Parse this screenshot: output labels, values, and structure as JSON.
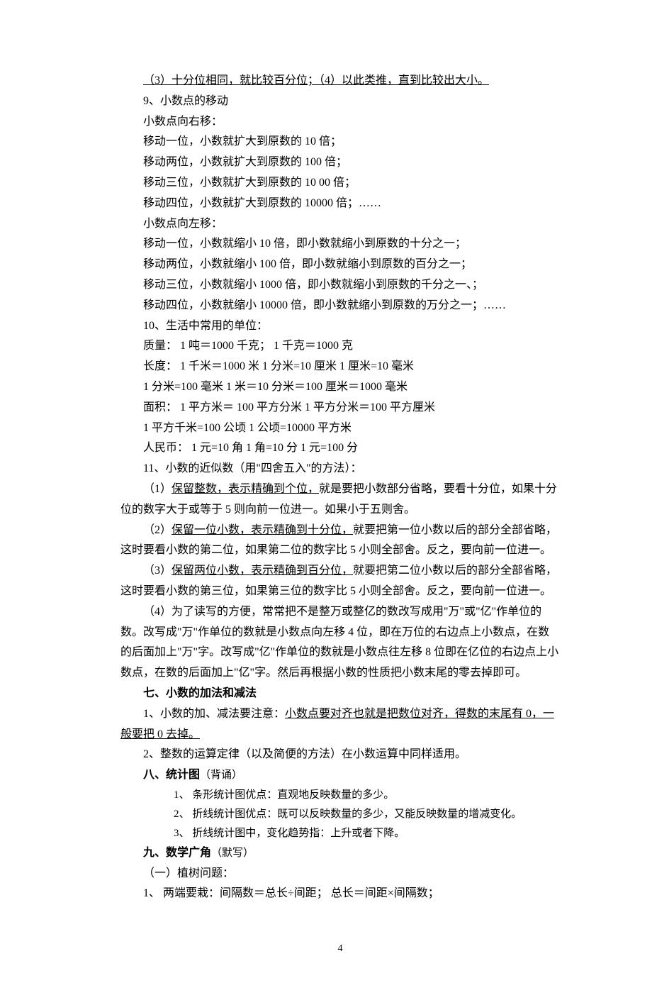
{
  "line1": "（3）十分位相同，就比较百分位；（4）以此类推，直到比较出大小。",
  "line2": "9、小数点的移动",
  "line3": "小数点向右移：",
  "line4": "移动一位，小数就扩大到原数的 10 倍；",
  "line5": "移动两位，小数就扩大到原数的 100 倍；",
  "line6": "移动三位，小数就扩大到原数的 10 00 倍；",
  "line7": "移动四位，小数就扩大到原数的 10000 倍；……",
  "line8": "小数点向左移：",
  "line9": "移动一位，小数就缩小 10 倍，即小数就缩小到原数的十分之一；",
  "line10": "移动两位，小数就缩小 100 倍，即小数就缩小到原数的百分之一；",
  "line11": "移动三位，小数就缩小 1000 倍，即小数就缩小到原数的千分之一、；",
  "line12": "移动四位，小数就缩小 10000 倍，即小数就缩小到原数的万分之一；……",
  "line13": "10、生活中常用的单位：",
  "line14": "质量：  1 吨＝1000 千克；      1 千克＝1000 克",
  "line15": "长度：  1 千米＝1000 米      1 分米=10 厘米    1 厘米=10 毫米",
  "line16": "             1 分米=100 毫米      1 米＝10 分米＝100 厘米＝1000 毫米",
  "line17": "面积：  1 平方米＝ 100 平方分米        1 平方分米＝100 平方厘米",
  "line18": "              1 平方千米=100 公顷           1 公顷=10000 平方米",
  "line19": "人民币：  1 元=10 角       1 角=10 分        1 元=100 分",
  "line20": "11、小数的近似数（用\"四舍五入\"的方法）：",
  "p21a": "（1）",
  "p21u": "保留整数，表示精确到个位，",
  "p21b": "就是要把小数部分省略，要看十分位，如果十分位的数字大于或等于 5 则向前一位进一。如果小于五则舍。",
  "p22a": "（2）",
  "p22u": "保留一位小数，表示精确到十分位，",
  "p22b": "就要把第一位小数以后的部分全部省略， 这时要看小数的第二位，如果第二位的数字比 5 小则全部舍。反之，要向前一位进一。",
  "p23a": "（3）",
  "p23u": "保留两位小数，表示精确到百分位，",
  "p23b": "就要把第二位小数以后的部分全部省略，这时要看小数的第三位，如果第三位的数字比 5 小则全部舍。反之，要向前一位进一。",
  "p24": "（4）为了读写的方便，常常把不是整万或整亿的数改写成用\"万\"或\"亿\"作单位的数。改写成\"万\"作单位的数就是小数点向左移 4 位，即在万位的右边点上小数点，在数的后面加上\"万\"字。改写成\"亿\"作单位的数就是小数点往左移 8 位即在亿位的右边点上小数点，在数的后面加上\"亿\"字。然后再根据小数的性质把小数末尾的零去掉即可。",
  "h7": "七、小数的加法和减法",
  "p71a": "1、小数的加、减法要注意：",
  "p71u": "小数点要对齐也就是把数位对齐，得数的末尾有 0，一般要把 0 去掉。",
  "p72": "2、整数的运算定律（以及简便的方法）在小数运算中同样适用。",
  "h8a": "八、统计图",
  "h8b": "（背诵）",
  "s81": "1、 条形统计图优点：直观地反映数量的多少。",
  "s82": "2、 折线统计图优点：既可以反映数量的多少，又能反映数量的增减变化。",
  "s83": "3、 折线统计图中，变化趋势指：上升或者下降。",
  "h9a": "九、数学广角",
  "h9b": "（默写）",
  "p91": "（一）植树问题：",
  "p92": "1、  两端要栽：间隔数＝总长÷间距；       总长＝间距×间隔数；",
  "pagenum": "4"
}
